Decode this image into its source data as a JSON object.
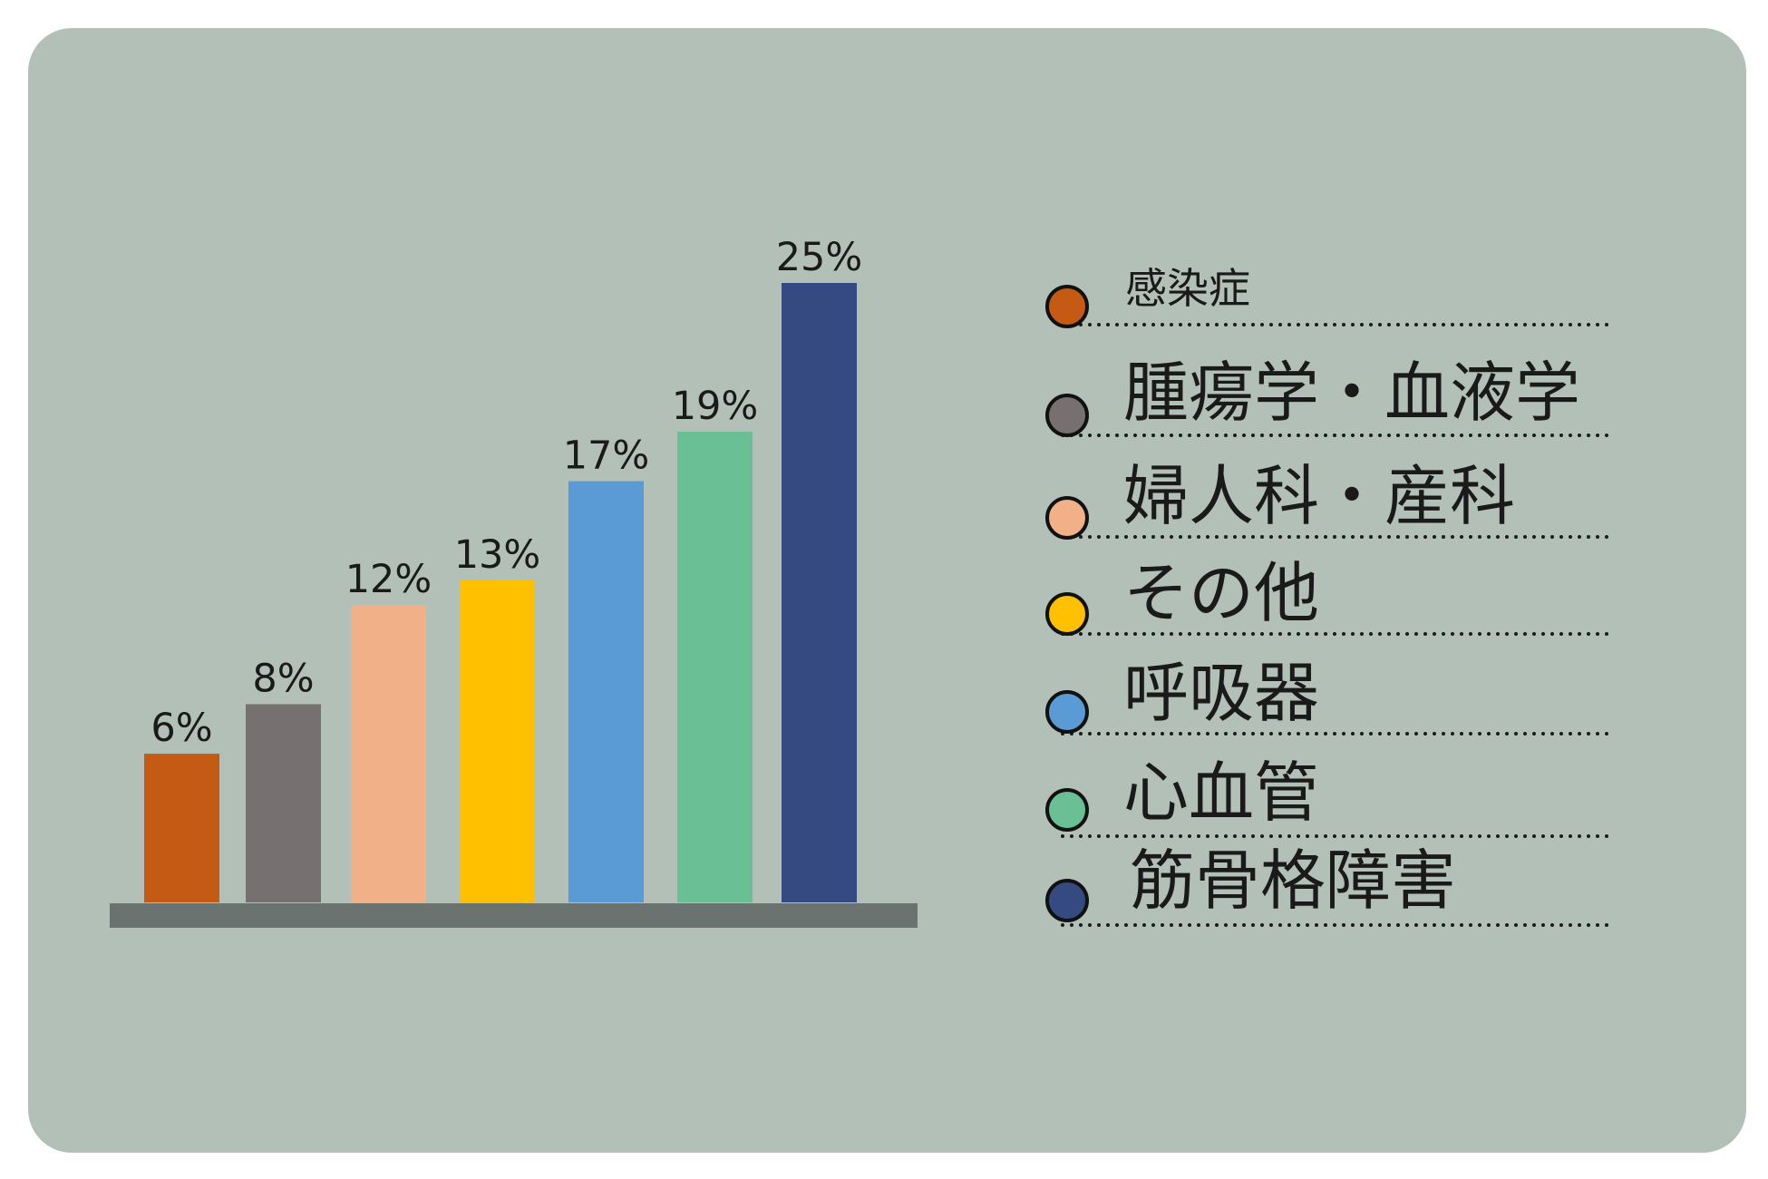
{
  "colors": {
    "card_background": "#b2c0b8",
    "baseline": "#6b7370",
    "dots": "#1a1a1a"
  },
  "chart_data": {
    "type": "bar",
    "title": "",
    "xlabel": "",
    "ylabel": "",
    "ylim": [
      0,
      25
    ],
    "grid": false,
    "legend_position": "right",
    "categories": [
      "感染症",
      "腫瘍学・血液学",
      "婦人科・産科",
      "その他",
      "呼吸器",
      "心血管",
      "筋骨格障害"
    ],
    "values": [
      6,
      8,
      12,
      13,
      17,
      19,
      25
    ],
    "value_labels": [
      "6%",
      "8%",
      "12%",
      "13%",
      "17%",
      "19%",
      "25%"
    ],
    "bar_colors": [
      "#c55a14",
      "#777070",
      "#f2b088",
      "#ffc000",
      "#5b9bd5",
      "#6abf94",
      "#344a80"
    ],
    "legend": [
      {
        "label": "感染症",
        "color": "#c55a14"
      },
      {
        "label": "腫瘍学・血液学",
        "color": "#777070"
      },
      {
        "label": "婦人科・産科",
        "color": "#f2b088"
      },
      {
        "label": "その他",
        "color": "#ffc000"
      },
      {
        "label": "呼吸器",
        "color": "#5b9bd5"
      },
      {
        "label": "心血管",
        "color": "#6abf94"
      },
      {
        "label": "筋骨格障害",
        "color": "#344a80"
      }
    ]
  }
}
